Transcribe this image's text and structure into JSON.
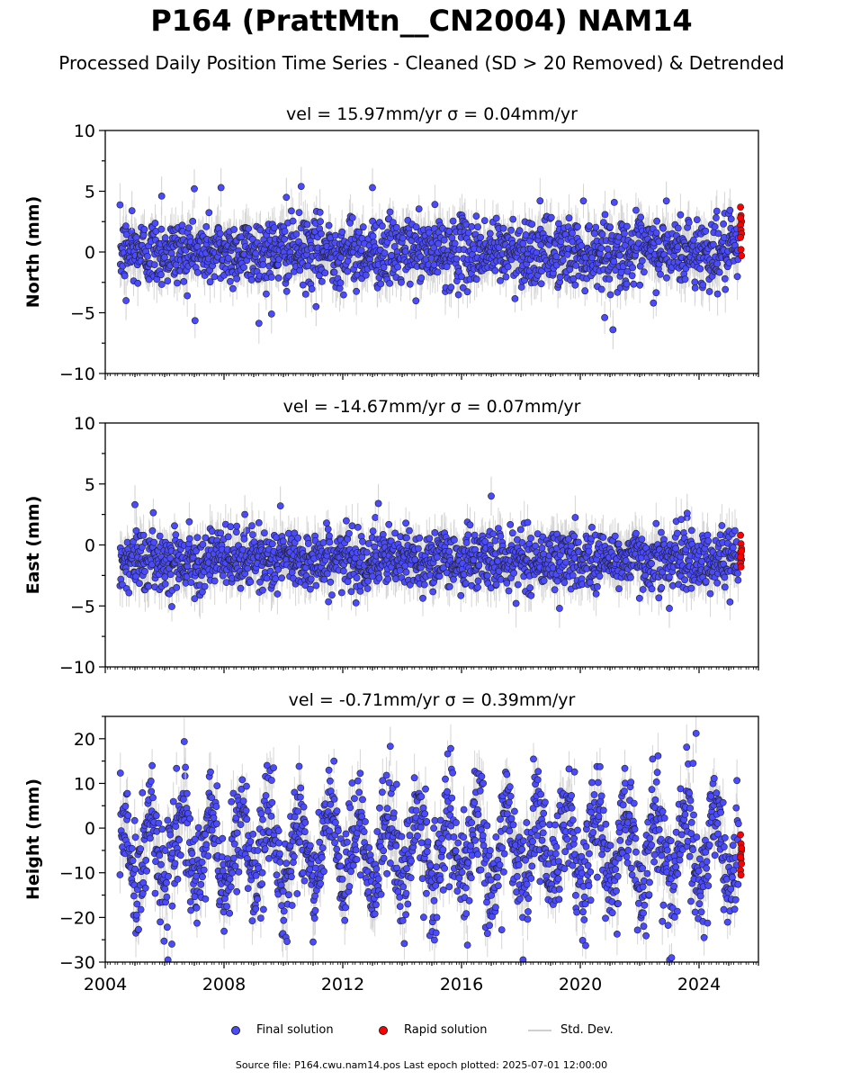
{
  "title": "P164 (PrattMtn__CN2004) NAM14",
  "subtitle": "Processed Daily Position Time Series - Cleaned (SD > 20 Removed) & Detrended",
  "footer": "Source file: P164.cwu.nam14.pos  Last epoch plotted: 2025-07-01 12:00:00",
  "legend": {
    "final": "Final solution",
    "rapid": "Rapid solution",
    "std": "Std. Dev."
  },
  "colors": {
    "final": "#4a4aff",
    "rapid": "#ff0000",
    "std": "#cfcfcf",
    "marker_edge": "#222222"
  },
  "chart_data": [
    {
      "type": "scatter",
      "panel_title": "vel = 15.97mm/yr   σ = 0.04mm/yr",
      "ylabel": "North (mm)",
      "xlim": [
        2004.0,
        2026.0
      ],
      "ylim": [
        -10,
        10
      ],
      "yticks": [
        -10,
        -5,
        0,
        5,
        10
      ],
      "xticks": [
        2004,
        2008,
        2012,
        2016,
        2020,
        2024
      ],
      "final_solution": {
        "date_range": [
          "2004-07-01",
          "2025-05-01"
        ],
        "approx_mean": 0,
        "approx_spread": 1.4
      },
      "rapid_solution": {
        "date_range": [
          "2025-05-01",
          "2025-07-01"
        ],
        "values": [
          3.7,
          3.0,
          2.5,
          2.2,
          1.8,
          1.5,
          1.2,
          0.2,
          -0.3,
          2.8
        ]
      },
      "outliers": [
        {
          "x": 2004.7,
          "y": -4.0
        },
        {
          "x": 2004.9,
          "y": 3.4
        },
        {
          "x": 2005.9,
          "y": 4.6
        },
        {
          "x": 2007.0,
          "y": 5.2
        },
        {
          "x": 2007.9,
          "y": 5.3
        },
        {
          "x": 2009.6,
          "y": -5.1
        },
        {
          "x": 2010.1,
          "y": 4.5
        },
        {
          "x": 2010.6,
          "y": 5.4
        },
        {
          "x": 2011.1,
          "y": -4.5
        },
        {
          "x": 2013.0,
          "y": 5.3
        },
        {
          "x": 2021.1,
          "y": -6.4
        },
        {
          "x": 2022.9,
          "y": 4.2
        }
      ]
    },
    {
      "type": "scatter",
      "panel_title": "vel = -14.67mm/yr   σ = 0.07mm/yr",
      "ylabel": "East (mm)",
      "xlim": [
        2004.0,
        2026.0
      ],
      "ylim": [
        -10,
        10
      ],
      "yticks": [
        -10,
        -5,
        0,
        5,
        10
      ],
      "xticks": [
        2004,
        2008,
        2012,
        2016,
        2020,
        2024
      ],
      "final_solution": {
        "date_range": [
          "2004-07-01",
          "2025-05-01"
        ],
        "approx_mean": -1.2,
        "approx_spread": 1.2
      },
      "rapid_solution": {
        "date_range": [
          "2025-05-01",
          "2025-07-01"
        ],
        "values": [
          0.8,
          0.1,
          -0.3,
          -0.6,
          -0.9,
          -1.2,
          -1.5,
          -1.8,
          -0.5,
          -1.0
        ]
      },
      "outliers": [
        {
          "x": 2005.0,
          "y": 3.3
        },
        {
          "x": 2008.7,
          "y": 2.5
        },
        {
          "x": 2009.9,
          "y": 3.2
        },
        {
          "x": 2013.2,
          "y": 3.4
        },
        {
          "x": 2017.0,
          "y": 4.0
        },
        {
          "x": 2019.3,
          "y": -5.2
        },
        {
          "x": 2023.0,
          "y": -5.2
        },
        {
          "x": 2023.6,
          "y": 2.6
        }
      ]
    },
    {
      "type": "scatter",
      "panel_title": "vel = -0.71mm/yr   σ = 0.39mm/yr",
      "ylabel": "Height (mm)",
      "xlim": [
        2004.0,
        2026.0
      ],
      "ylim": [
        -30,
        25
      ],
      "yticks": [
        -30,
        -20,
        -10,
        0,
        10,
        20
      ],
      "xticks": [
        2004,
        2008,
        2012,
        2016,
        2020,
        2024
      ],
      "xticklabels": [
        "2004",
        "2008",
        "2012",
        "2016",
        "2020",
        "2024"
      ],
      "final_solution": {
        "date_range": [
          "2004-07-01",
          "2025-05-01"
        ],
        "approx_mean": -5,
        "approx_spread": 6,
        "seasonal_amplitude": 8
      },
      "rapid_solution": {
        "date_range": [
          "2025-05-01",
          "2025-07-01"
        ],
        "values": [
          -1.5,
          -3.5,
          -5.0,
          -6.0,
          -7.0,
          -8.0,
          -9.5,
          -10.5,
          -4.5,
          -6.5
        ]
      },
      "outliers": [
        {
          "x": 2011.0,
          "y": -25.5
        },
        {
          "x": 2013.6,
          "y": 18.3
        },
        {
          "x": 2016.2,
          "y": -26.2
        },
        {
          "x": 2023.9,
          "y": 21.2
        },
        {
          "x": 2023.8,
          "y": 14.5
        },
        {
          "x": 2006.7,
          "y": 13.6
        }
      ]
    }
  ]
}
